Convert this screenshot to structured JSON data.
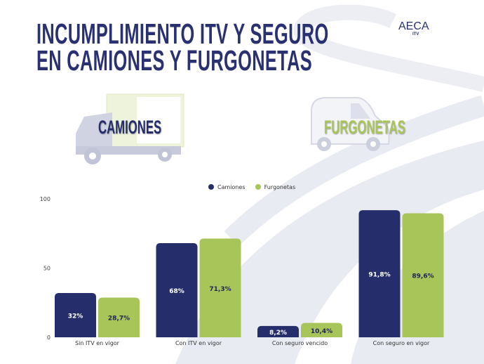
{
  "title_lines": [
    "INCUMPLIMIENTO ITV Y SEGURO",
    "EN CAMIONES Y FURGONETAS"
  ],
  "logo": {
    "text": "AECA",
    "sub": "ITV"
  },
  "vehicles": {
    "left": "CAMIONES",
    "right": "FURGONETAS"
  },
  "colors": {
    "camiones": "#262d6b",
    "furgonetas": "#a8c55a",
    "title": "#2a3170",
    "road": "#e9ebf2"
  },
  "chart_data": {
    "type": "bar",
    "categories": [
      "Sin ITV en vigor",
      "Con ITV en vigor",
      "Con seguro vencido",
      "Con seguro en vigor"
    ],
    "series": [
      {
        "name": "Camiones",
        "values": [
          32,
          68,
          8.2,
          91.8
        ],
        "labels": [
          "32%",
          "68%",
          "8,2%",
          "91,8%"
        ]
      },
      {
        "name": "Furgonetas",
        "values": [
          28.7,
          71.3,
          10.4,
          89.6
        ],
        "labels": [
          "28,7%",
          "71,3%",
          "10,4%",
          "89,6%"
        ]
      }
    ],
    "yticks": [
      0,
      50,
      100
    ],
    "ylim": [
      0,
      100
    ],
    "grid": false,
    "legend": "top-center"
  }
}
